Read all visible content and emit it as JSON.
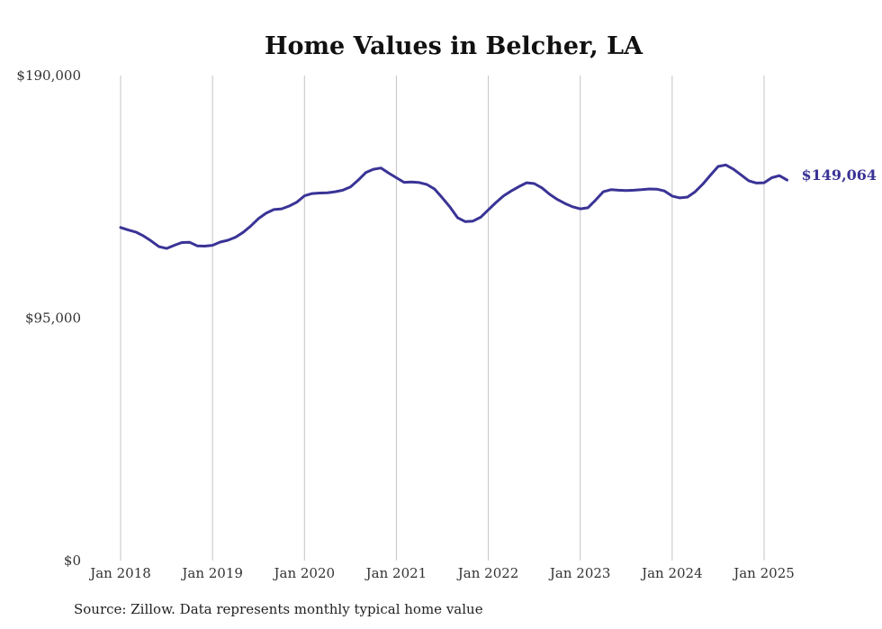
{
  "chart_data": {
    "type": "line",
    "title": "Home Values in Belcher, LA",
    "source": "Source: Zillow. Data represents monthly typical home value",
    "xlabel": "",
    "ylabel": "",
    "ylim": [
      0,
      190000
    ],
    "yticks": [
      {
        "value": 0,
        "label": "$0"
      },
      {
        "value": 95000,
        "label": "$95,000"
      },
      {
        "value": 190000,
        "label": "$190,000"
      }
    ],
    "xticks": [
      {
        "value": "2018-01",
        "label": "Jan 2018"
      },
      {
        "value": "2019-01",
        "label": "Jan 2019"
      },
      {
        "value": "2020-01",
        "label": "Jan 2020"
      },
      {
        "value": "2021-01",
        "label": "Jan 2021"
      },
      {
        "value": "2022-01",
        "label": "Jan 2022"
      },
      {
        "value": "2023-01",
        "label": "Jan 2023"
      },
      {
        "value": "2024-01",
        "label": "Jan 2024"
      },
      {
        "value": "2025-01",
        "label": "Jan 2025"
      }
    ],
    "grid": {
      "vertical": true,
      "horizontal": false
    },
    "line_color": "#3a3396",
    "end_label": "$149,064",
    "series": [
      {
        "x": [
          "2018-01",
          "2018-02",
          "2018-03",
          "2018-04",
          "2018-05",
          "2018-06",
          "2018-07",
          "2018-08",
          "2018-09",
          "2018-10",
          "2018-11",
          "2018-12",
          "2019-01",
          "2019-02",
          "2019-03",
          "2019-04",
          "2019-05",
          "2019-06",
          "2019-07",
          "2019-08",
          "2019-09",
          "2019-10",
          "2019-11",
          "2019-12",
          "2020-01",
          "2020-02",
          "2020-03",
          "2020-04",
          "2020-05",
          "2020-06",
          "2020-07",
          "2020-08",
          "2020-09",
          "2020-10",
          "2020-11",
          "2020-12",
          "2021-01",
          "2021-02",
          "2021-03",
          "2021-04",
          "2021-05",
          "2021-06",
          "2021-07",
          "2021-08",
          "2021-09",
          "2021-10",
          "2021-11",
          "2021-12",
          "2022-01",
          "2022-02",
          "2022-03",
          "2022-04",
          "2022-05",
          "2022-06",
          "2022-07",
          "2022-08",
          "2022-09",
          "2022-10",
          "2022-11",
          "2022-12",
          "2023-01",
          "2023-02",
          "2023-03",
          "2023-04",
          "2023-05",
          "2023-06",
          "2023-07",
          "2023-08",
          "2023-09",
          "2023-10",
          "2023-11",
          "2023-12",
          "2024-01",
          "2024-02",
          "2024-03",
          "2024-04",
          "2024-05",
          "2024-06",
          "2024-07",
          "2024-08",
          "2024-09",
          "2024-10",
          "2024-11",
          "2024-12",
          "2025-01",
          "2025-02",
          "2025-03",
          "2025-04"
        ],
        "values": [
          130500,
          129500,
          128700,
          127200,
          125200,
          123000,
          122300,
          123500,
          124600,
          124700,
          123300,
          123200,
          123500,
          124800,
          125500,
          126700,
          128600,
          131100,
          134000,
          136100,
          137500,
          137800,
          138900,
          140400,
          142900,
          143800,
          144000,
          144100,
          144500,
          145100,
          146400,
          149000,
          152000,
          153300,
          153800,
          151800,
          150000,
          148200,
          148300,
          148100,
          147300,
          145500,
          142100,
          138500,
          134300,
          132800,
          133000,
          134500,
          137400,
          140300,
          142900,
          144800,
          146500,
          148000,
          147700,
          146000,
          143500,
          141500,
          139900,
          138600,
          137800,
          138200,
          141200,
          144500,
          145300,
          145100,
          145000,
          145100,
          145300,
          145600,
          145500,
          144800,
          142800,
          142100,
          142400,
          144500,
          147500,
          151000,
          154400,
          155000,
          153300,
          151100,
          148800,
          147900,
          148000,
          150000,
          150800,
          149064
        ]
      }
    ]
  }
}
